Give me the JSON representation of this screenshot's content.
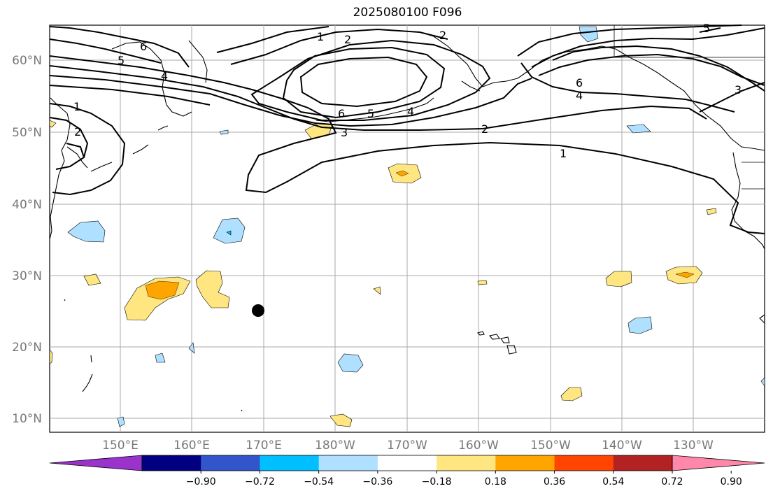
{
  "title": "2025080100 F096",
  "latitude_labels": [
    "60°N",
    "50°N",
    "40°N",
    "30°N",
    "20°N",
    "10°N"
  ],
  "longitude_labels": [
    "150°E",
    "160°E",
    "170°E",
    "180°W",
    "170°W",
    "160°W",
    "150°W",
    "140°W",
    "130°W"
  ],
  "contour_labels": [
    "1",
    "2",
    "3",
    "4",
    "5",
    "6"
  ],
  "colorbar": {
    "ticks": [
      "−0.90",
      "−0.72",
      "−0.54",
      "−0.36",
      "−0.18",
      "0.18",
      "0.36",
      "0.54",
      "0.72",
      "0.90"
    ],
    "colors": [
      "#9933cc",
      "#000080",
      "#3355cc",
      "#00bfff",
      "#b0e0ff",
      "#ffffff",
      "#ffe680",
      "#ffa500",
      "#ff4500",
      "#b22222",
      "#ff88aa"
    ]
  },
  "colors": {
    "light_blue_fill": "#b0e0ff",
    "cyan_fill": "#00bfff",
    "yellow_fill": "#ffe680",
    "orange_fill": "#ffa500",
    "gridline": "#aaaaaa",
    "contour_line": "#000000",
    "marker": "#000000"
  }
}
